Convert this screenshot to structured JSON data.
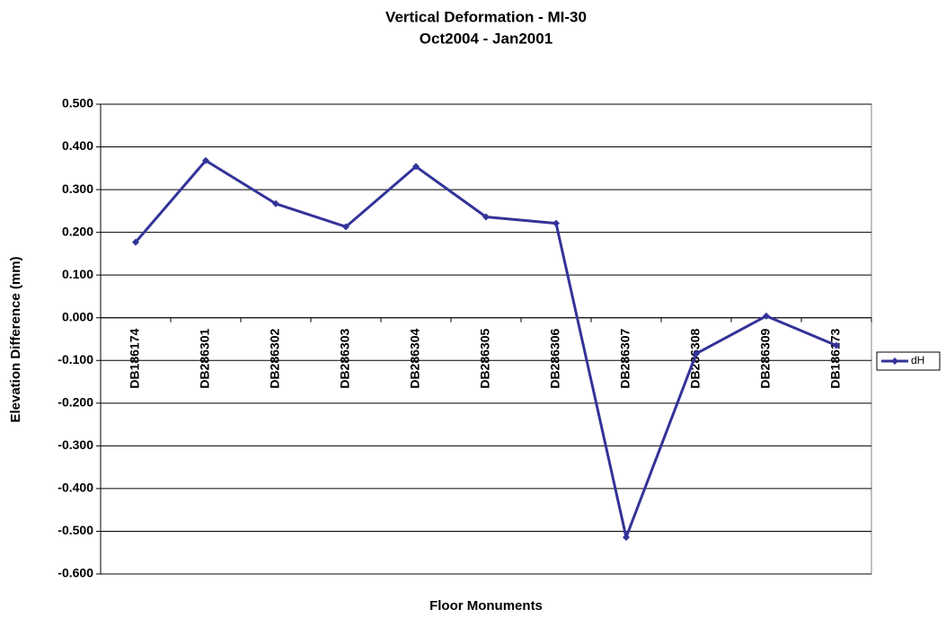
{
  "chart_data": {
    "type": "line",
    "title": "Vertical Deformation - MI-30",
    "subtitle": "Oct2004 - Jan2001",
    "x_label": "Floor Monuments",
    "y_label": "Elevation Difference (mm)",
    "categories": [
      "DB186174",
      "DB286301",
      "DB286302",
      "DB286303",
      "DB286304",
      "DB286305",
      "DB286306",
      "DB286307",
      "DB286308",
      "DB286309",
      "DB186173"
    ],
    "series": [
      {
        "name": "dH",
        "color": "#333399",
        "values": [
          0.177,
          0.368,
          0.267,
          0.213,
          0.354,
          0.236,
          0.221,
          -0.514,
          -0.084,
          0.004,
          -0.065
        ]
      }
    ],
    "ylim": [
      -0.6,
      0.5
    ],
    "yticks": [
      {
        "value": -0.6,
        "label": "-0.600"
      },
      {
        "value": -0.5,
        "label": "-0.500"
      },
      {
        "value": -0.4,
        "label": "-0.400"
      },
      {
        "value": -0.3,
        "label": "-0.300"
      },
      {
        "value": -0.2,
        "label": "-0.200"
      },
      {
        "value": -0.1,
        "label": "-0.100"
      },
      {
        "value": 0,
        "label": "0.000"
      },
      {
        "value": 0.1,
        "label": "0.100"
      },
      {
        "value": 0.2,
        "label": "0.200"
      },
      {
        "value": 0.3,
        "label": "0.300"
      },
      {
        "value": 0.4,
        "label": "0.400"
      },
      {
        "value": 0.5,
        "label": "0.500"
      }
    ],
    "grid": true,
    "legend": "right"
  }
}
